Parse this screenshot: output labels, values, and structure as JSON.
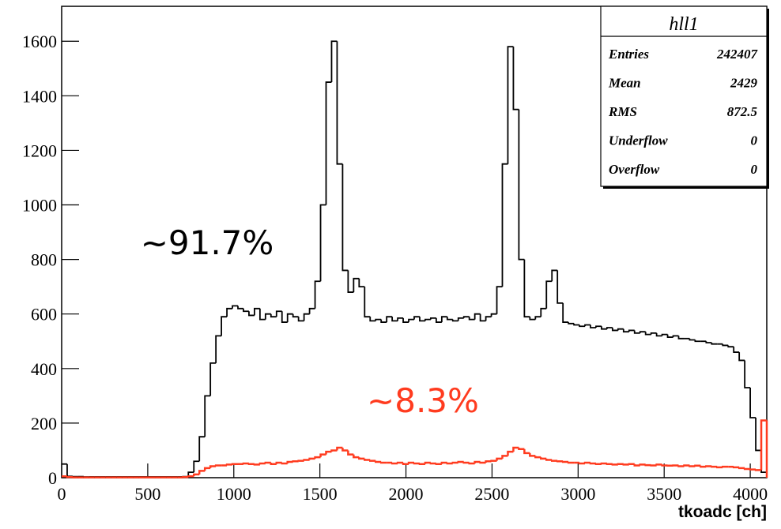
{
  "chart_data": {
    "type": "histogram",
    "xlabel": "tkoadc [ch]",
    "bins": [
      0,
      32,
      64,
      96,
      128,
      160,
      192,
      224,
      256,
      288,
      320,
      352,
      384,
      416,
      448,
      480,
      512,
      544,
      576,
      608,
      640,
      672,
      704,
      736,
      768,
      800,
      832,
      864,
      896,
      928,
      960,
      992,
      1024,
      1056,
      1088,
      1120,
      1152,
      1184,
      1216,
      1248,
      1280,
      1312,
      1344,
      1376,
      1408,
      1440,
      1472,
      1504,
      1536,
      1568,
      1600,
      1632,
      1664,
      1696,
      1728,
      1760,
      1792,
      1824,
      1856,
      1888,
      1920,
      1952,
      1984,
      2016,
      2048,
      2080,
      2112,
      2144,
      2176,
      2208,
      2240,
      2272,
      2304,
      2336,
      2368,
      2400,
      2432,
      2464,
      2496,
      2528,
      2560,
      2592,
      2624,
      2656,
      2688,
      2720,
      2752,
      2784,
      2816,
      2848,
      2880,
      2912,
      2944,
      2976,
      3008,
      3040,
      3072,
      3104,
      3136,
      3168,
      3200,
      3232,
      3264,
      3296,
      3328,
      3360,
      3392,
      3424,
      3456,
      3488,
      3520,
      3552,
      3584,
      3616,
      3648,
      3680,
      3712,
      3744,
      3776,
      3808,
      3840,
      3872,
      3904,
      3936,
      3968,
      4000,
      4032,
      4064,
      4096
    ],
    "series": [
      {
        "color": "#000000",
        "values": [
          50,
          5,
          4,
          4,
          3,
          3,
          3,
          3,
          3,
          3,
          3,
          3,
          3,
          3,
          3,
          3,
          3,
          3,
          3,
          3,
          3,
          3,
          4,
          20,
          60,
          150,
          300,
          420,
          520,
          590,
          620,
          630,
          620,
          610,
          595,
          620,
          580,
          600,
          590,
          610,
          570,
          600,
          590,
          575,
          600,
          620,
          720,
          1000,
          1450,
          1600,
          1150,
          760,
          680,
          730,
          700,
          590,
          575,
          580,
          570,
          590,
          575,
          585,
          570,
          580,
          590,
          575,
          580,
          585,
          570,
          590,
          580,
          575,
          585,
          590,
          580,
          600,
          575,
          590,
          600,
          700,
          1150,
          1580,
          1350,
          800,
          590,
          580,
          590,
          620,
          720,
          760,
          640,
          570,
          565,
          560,
          555,
          560,
          550,
          555,
          545,
          550,
          540,
          545,
          535,
          540,
          530,
          535,
          525,
          530,
          520,
          525,
          515,
          520,
          510,
          510,
          505,
          500,
          500,
          495,
          490,
          490,
          485,
          480,
          460,
          430,
          330,
          220,
          100,
          20
        ]
      },
      {
        "color": "#ff3b1f",
        "values": [
          5,
          2,
          1,
          1,
          1,
          1,
          1,
          1,
          1,
          1,
          1,
          1,
          1,
          1,
          1,
          1,
          1,
          1,
          1,
          1,
          1,
          1,
          2,
          5,
          12,
          25,
          35,
          42,
          45,
          45,
          48,
          50,
          50,
          52,
          50,
          48,
          52,
          55,
          50,
          55,
          52,
          58,
          60,
          62,
          65,
          70,
          75,
          85,
          95,
          100,
          110,
          100,
          85,
          75,
          70,
          65,
          62,
          58,
          55,
          55,
          52,
          55,
          50,
          55,
          52,
          50,
          55,
          52,
          50,
          55,
          52,
          55,
          58,
          55,
          52,
          58,
          55,
          60,
          62,
          70,
          80,
          95,
          110,
          105,
          90,
          80,
          75,
          70,
          65,
          62,
          60,
          58,
          55,
          55,
          52,
          55,
          52,
          50,
          52,
          50,
          48,
          50,
          48,
          50,
          45,
          48,
          46,
          45,
          48,
          45,
          44,
          45,
          42,
          45,
          42,
          44,
          40,
          42,
          40,
          38,
          40,
          40,
          38,
          35,
          32,
          30,
          28,
          210
        ]
      }
    ],
    "xlim": [
      0,
      4096
    ],
    "ylim": [
      0,
      1728
    ],
    "xticks": [
      0,
      500,
      1000,
      1500,
      2000,
      2500,
      3000,
      3500,
      4000
    ],
    "yticks": [
      0,
      200,
      400,
      600,
      800,
      1000,
      1200,
      1400,
      1600
    ],
    "annotations": [
      {
        "text": "~91.7%",
        "color": "#000000"
      },
      {
        "text": "~8.3%",
        "color": "#ff3b1f"
      }
    ],
    "stats": {
      "title": "hll1",
      "rows": [
        [
          "Entries",
          "242407"
        ],
        [
          "Mean",
          "2429"
        ],
        [
          "RMS",
          "872.5"
        ],
        [
          "Underflow",
          "0"
        ],
        [
          "Overflow",
          "0"
        ]
      ]
    }
  }
}
